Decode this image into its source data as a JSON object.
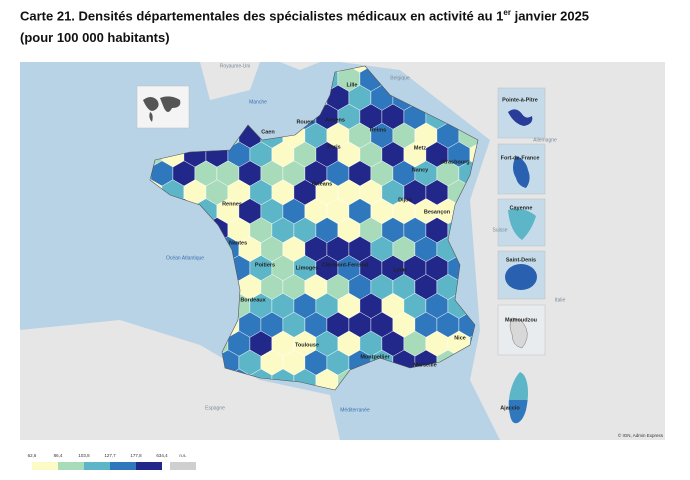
{
  "header": {
    "title_line1": "Carte 21. Densités départementales des spécialistes médicaux en activité au 1",
    "title_sup": "er",
    "title_end": " janvier 2025",
    "title_line2": "(pour 100 000 habitants)"
  },
  "map": {
    "seas": [
      "Manche",
      "Océan Atlantique",
      "Méditerranée"
    ],
    "countries": [
      "Royaume-Uni",
      "Belgique",
      "Allemagne",
      "Suisse",
      "Italie",
      "Espagne"
    ],
    "cities": [
      "Lille",
      "Amiens",
      "Rouen",
      "Caen",
      "Reims",
      "Paris",
      "Metz",
      "Strasbourg",
      "Nancy",
      "Rennes",
      "Orléans",
      "Nantes",
      "Dijon",
      "Besançon",
      "Poitiers",
      "Limoges",
      "Clermont-Ferrand",
      "Lyon",
      "Bordeaux",
      "Toulouse",
      "Montpellier",
      "Marseille",
      "Nice",
      "Ajaccio"
    ],
    "insets": [
      "Pointe-à-Pitre",
      "Fort-de-France",
      "Cayenne",
      "Saint-Denis",
      "Mamoudzou"
    ],
    "credit": "© IGN, Admin Express"
  },
  "legend": {
    "breaks": [
      "62,6",
      "86,4",
      "103,8",
      "127,7",
      "177,8",
      "634,4"
    ],
    "na": "n.s."
  }
}
